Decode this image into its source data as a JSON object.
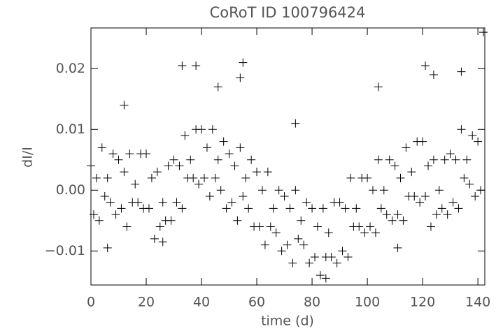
{
  "chart_data": {
    "type": "scatter",
    "title": "CoRoT ID 100796424",
    "x_label": "time (d)",
    "y_label": "dI/I",
    "marker": "plus",
    "color": "#000000",
    "xlim": [
      0,
      142.5
    ],
    "ylim": [
      -0.0156,
      0.0267
    ],
    "xticks": [
      0,
      20,
      40,
      60,
      80,
      100,
      120,
      140
    ],
    "yticks": [
      {
        "value": -0.01,
        "label": "−0.01"
      },
      {
        "value": 0,
        "label": "0.00"
      },
      {
        "value": 0.01,
        "label": "0.01"
      },
      {
        "value": 0.02,
        "label": "0.02"
      }
    ],
    "x": [
      0,
      1,
      2,
      3,
      4,
      5,
      6,
      7,
      8,
      9,
      10,
      11,
      12,
      13,
      14,
      15,
      16,
      17,
      18,
      19,
      20,
      21,
      22,
      23,
      24,
      25,
      26,
      27,
      28,
      29,
      30,
      31,
      32,
      33,
      34,
      35,
      36,
      37,
      38,
      39,
      40,
      41,
      42,
      43,
      44,
      45,
      46,
      47,
      48,
      49,
      50,
      51,
      52,
      53,
      54,
      55,
      56,
      57,
      58,
      59,
      60,
      61,
      62,
      63,
      64,
      65,
      66,
      67,
      68,
      69,
      70,
      71,
      72,
      73,
      74,
      75,
      76,
      77,
      78,
      79,
      80,
      81,
      82,
      83,
      84,
      85,
      86,
      87,
      88,
      89,
      90,
      91,
      92,
      93,
      94,
      95,
      96,
      97,
      98,
      99,
      100,
      101,
      102,
      103,
      104,
      105,
      106,
      107,
      108,
      109,
      110,
      111,
      112,
      113,
      114,
      115,
      116,
      117,
      118,
      119,
      120,
      121,
      122,
      123,
      124,
      125,
      126,
      127,
      128,
      129,
      130,
      131,
      132,
      133,
      134,
      135,
      136,
      137,
      138,
      139,
      140,
      141,
      33,
      38,
      55,
      54,
      74,
      121,
      134,
      142,
      6,
      85,
      111,
      26,
      12,
      46,
      104,
      124
    ],
    "values": [
      0.004,
      -0.004,
      0.002,
      -0.005,
      0.007,
      -0.001,
      0.002,
      -0.002,
      0.006,
      -0.004,
      0.005,
      -0.003,
      0.003,
      -0.006,
      0.006,
      -0.002,
      0.001,
      -0.002,
      0.006,
      -0.003,
      0.006,
      -0.003,
      0.002,
      -0.008,
      0.003,
      -0.006,
      -0.002,
      -0.005,
      0.004,
      -0.005,
      0.005,
      -0.002,
      0.004,
      -0.003,
      0.009,
      0.002,
      0.005,
      0.002,
      0.01,
      0.001,
      0.01,
      0.002,
      0.007,
      -0.001,
      0.01,
      0.002,
      0.005,
      0.0,
      0.008,
      -0.003,
      0.006,
      -0.002,
      0.004,
      -0.005,
      0.007,
      -0.001,
      0.002,
      -0.003,
      0.005,
      -0.006,
      0.003,
      -0.006,
      0.0,
      -0.009,
      0.003,
      -0.006,
      -0.003,
      -0.007,
      0.0,
      -0.01,
      -0.001,
      -0.009,
      -0.003,
      -0.012,
      0.0,
      -0.008,
      -0.005,
      -0.009,
      -0.002,
      -0.012,
      -0.003,
      -0.011,
      -0.006,
      -0.014,
      -0.003,
      -0.011,
      -0.007,
      -0.011,
      -0.002,
      -0.012,
      -0.002,
      -0.01,
      -0.003,
      -0.011,
      0.002,
      -0.006,
      -0.003,
      -0.006,
      0.002,
      -0.007,
      0.002,
      -0.006,
      0.0,
      -0.007,
      0.005,
      -0.003,
      0.0,
      -0.004,
      0.005,
      -0.005,
      0.004,
      -0.004,
      0.002,
      -0.005,
      0.007,
      -0.001,
      0.003,
      -0.001,
      0.008,
      -0.002,
      0.008,
      -0.001,
      0.004,
      -0.006,
      0.005,
      -0.004,
      0.0,
      -0.003,
      0.005,
      -0.004,
      0.006,
      -0.002,
      0.005,
      -0.003,
      0.01,
      0.002,
      0.005,
      0.001,
      0.009,
      -0.001,
      0.008,
      0.0,
      0.0205,
      0.0205,
      0.021,
      0.0185,
      0.011,
      0.0205,
      0.0195,
      0.026,
      -0.0095,
      -0.0145,
      -0.0095,
      -0.0085,
      0.014,
      0.017,
      0.017,
      0.019
    ]
  }
}
